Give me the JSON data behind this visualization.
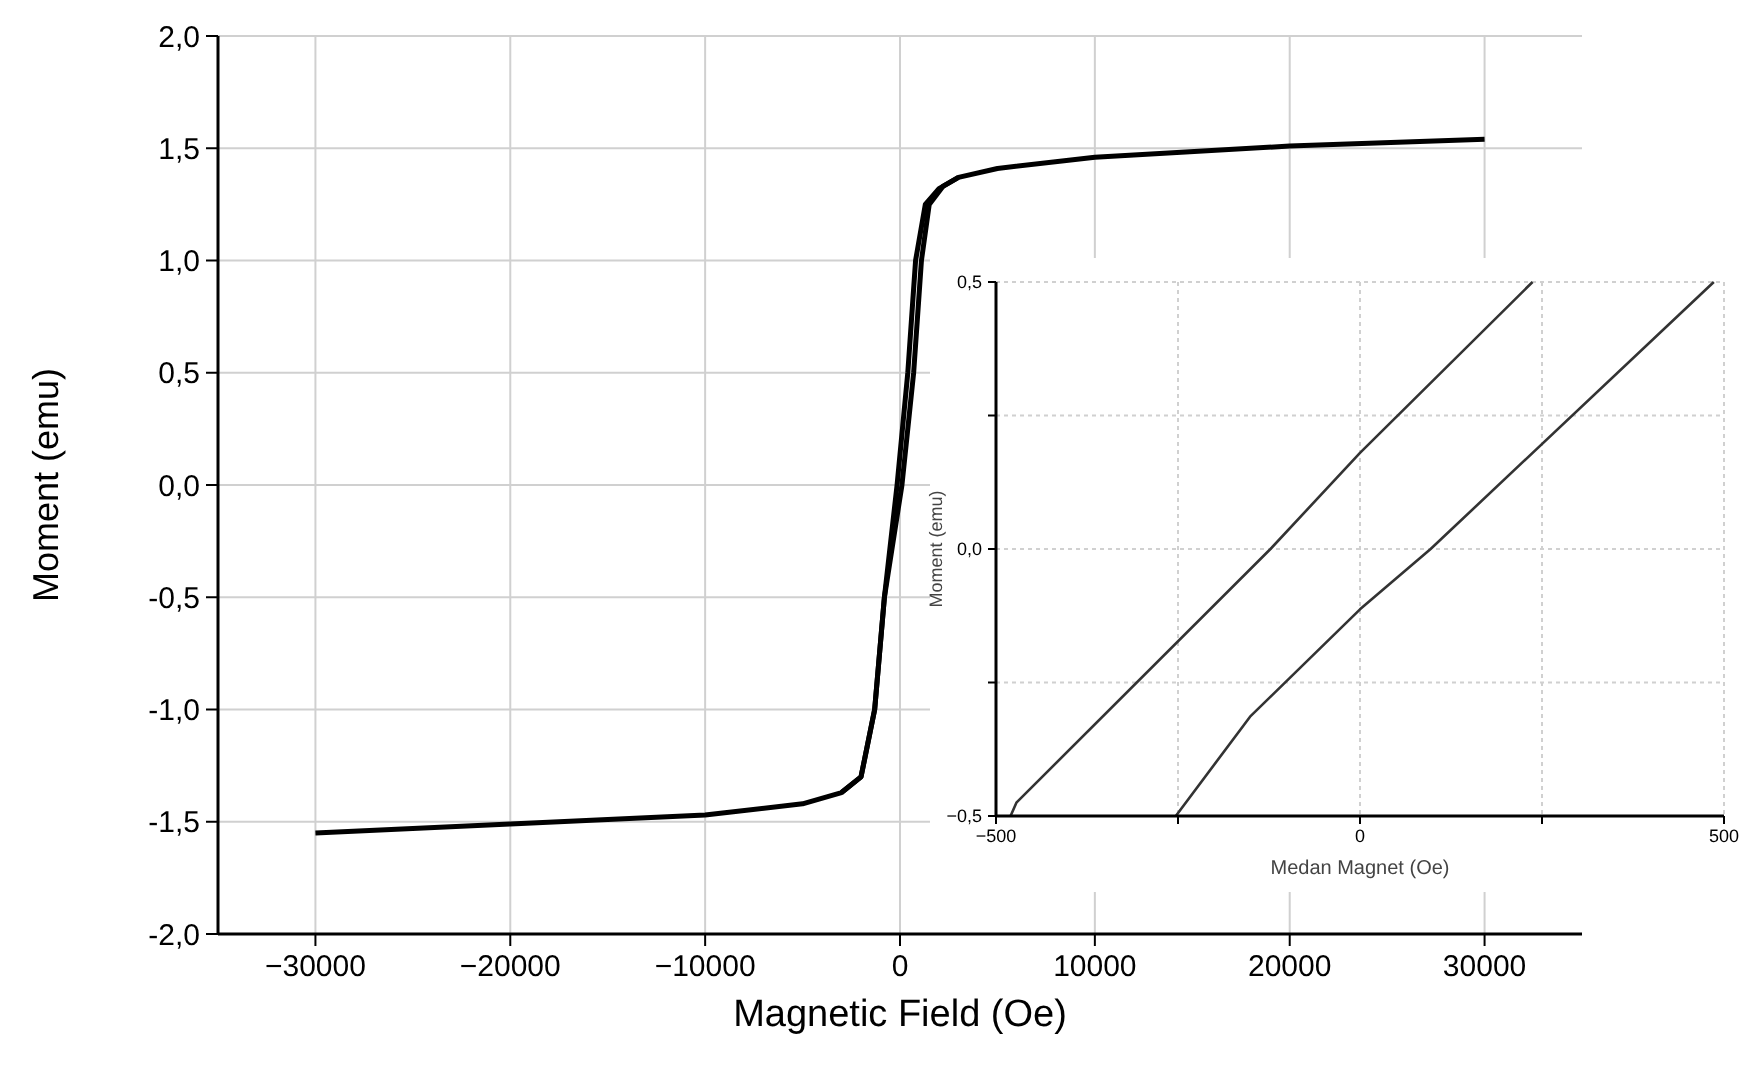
{
  "chart_data": [
    {
      "type": "line",
      "xlabel": "Magnetic Field (Oe)",
      "ylabel": "Moment (emu)",
      "xlim": [
        -35000,
        35000
      ],
      "ylim": [
        -2.0,
        2.0
      ],
      "xticks": [
        {
          "value": -30000,
          "label": "−30000"
        },
        {
          "value": -20000,
          "label": "−20000"
        },
        {
          "value": -10000,
          "label": "−10000"
        },
        0,
        10000,
        20000,
        30000
      ],
      "yticks": [
        {
          "value": -2,
          "label": "-2,0"
        },
        {
          "value": -1.5,
          "label": "-1,5"
        },
        {
          "value": -1,
          "label": "-1,0"
        },
        {
          "value": -0.5,
          "label": "-0,5"
        },
        {
          "value": 0,
          "label": "0,0"
        },
        {
          "value": 0.5,
          "label": "0,5"
        },
        {
          "value": 1,
          "label": "1,0"
        },
        {
          "value": 1.5,
          "label": "1,5"
        },
        {
          "value": 2,
          "label": "2,0"
        }
      ],
      "grid": true,
      "marker": "none",
      "line_style": "solid",
      "series": [
        {
          "color": "#000000",
          "x": [
            -30000,
            -20000,
            -10000,
            -5000,
            -3000,
            -2000,
            -1300,
            -800,
            100,
            700,
            1100,
            1500,
            2200,
            3000,
            5000,
            10000,
            20000,
            30000
          ],
          "values": [
            -1.55,
            -1.51,
            -1.47,
            -1.42,
            -1.37,
            -1.3,
            -1.0,
            -0.5,
            0,
            0.5,
            1.0,
            1.25,
            1.33,
            1.37,
            1.41,
            1.46,
            1.51,
            1.54
          ]
        },
        {
          "color": "#000000",
          "x": [
            -3000,
            -2000,
            -1300,
            -800,
            -150,
            400,
            800,
            1300,
            2000,
            3000
          ],
          "values": [
            -1.37,
            -1.3,
            -1.0,
            -0.5,
            0,
            0.5,
            1.0,
            1.25,
            1.32,
            1.37
          ]
        }
      ]
    },
    {
      "type": "line",
      "xlabel": "Medan Magnet (Oe)",
      "ylabel": "Moment (emu)",
      "xlim": [
        -500,
        500
      ],
      "ylim": [
        -0.5,
        0.5
      ],
      "xticks": [
        {
          "value": -500,
          "label": "−500"
        },
        {
          "value": -250,
          "label": null
        },
        0,
        {
          "value": 250,
          "label": null
        },
        500
      ],
      "yticks": [
        {
          "value": -0.5,
          "label": "−0,5"
        },
        {
          "value": -0.25,
          "label": null
        },
        {
          "value": 0,
          "label": "0,0"
        },
        {
          "value": 0.25,
          "label": null
        },
        {
          "value": 0.5,
          "label": "0,5"
        }
      ],
      "grid": true,
      "marker": "none",
      "line_style": "solid",
      "series": [
        {
          "color": "#333333",
          "x": [
            -480,
            -472,
            -123,
            0,
            237
          ],
          "values": [
            -0.5,
            -0.475,
            0,
            0.18,
            0.5
          ]
        },
        {
          "color": "#333333",
          "x": [
            -253,
            -151,
            0,
            97,
            486
          ],
          "values": [
            -0.5,
            -0.314,
            -0.113,
            0,
            0.5
          ]
        }
      ]
    }
  ]
}
